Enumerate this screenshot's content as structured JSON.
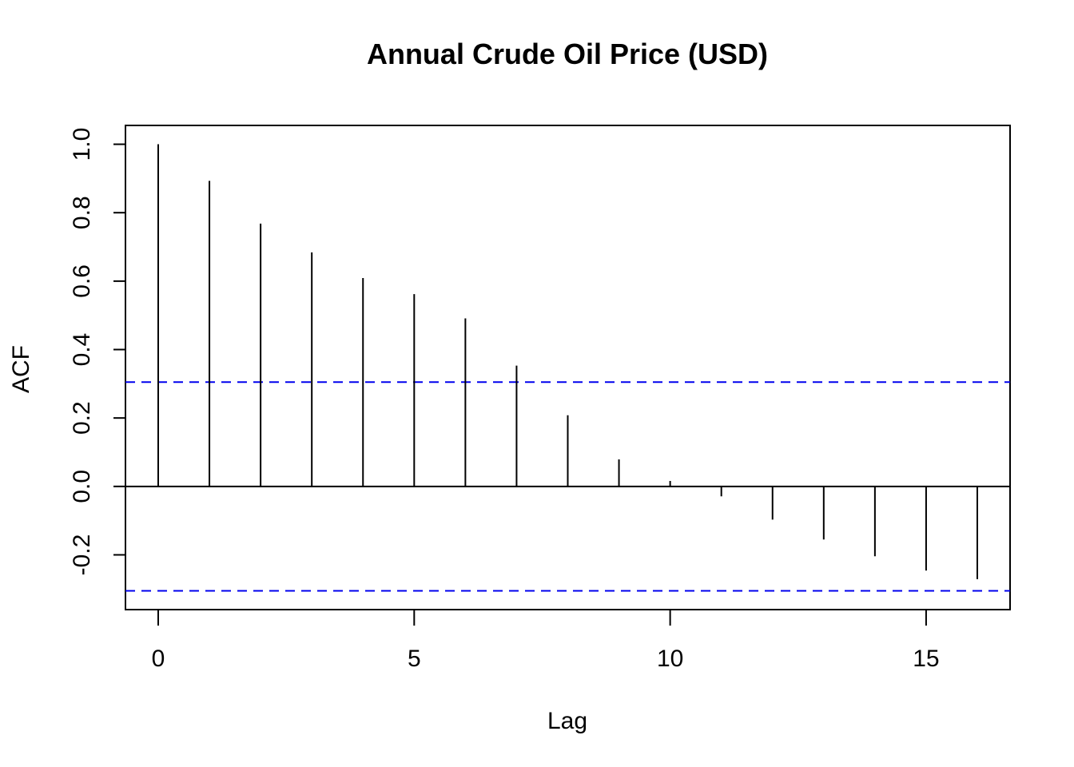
{
  "chart_data": {
    "type": "bar",
    "title": "Annual Crude Oil Price (USD)",
    "xlabel": "Lag",
    "ylabel": "ACF",
    "x": [
      0,
      1,
      2,
      3,
      4,
      5,
      6,
      7,
      8,
      9,
      10,
      11,
      12,
      13,
      14,
      15,
      16
    ],
    "values": [
      1.0,
      0.893,
      0.768,
      0.684,
      0.609,
      0.562,
      0.491,
      0.353,
      0.208,
      0.079,
      0.016,
      -0.029,
      -0.097,
      -0.155,
      -0.204,
      -0.246,
      -0.271
    ],
    "xlim": [
      -0.64,
      16.64
    ],
    "ylim": [
      -0.36,
      1.055
    ],
    "xticks": [
      0,
      5,
      10,
      15
    ],
    "xtick_labels": [
      "0",
      "5",
      "10",
      "15"
    ],
    "yticks": [
      -0.2,
      0.0,
      0.2,
      0.4,
      0.6,
      0.8,
      1.0
    ],
    "ytick_labels": [
      "-0.2",
      "0.0",
      "0.2",
      "0.4",
      "0.6",
      "0.8",
      "1.0"
    ],
    "confidence_bounds": [
      0.305,
      -0.305
    ],
    "zero_line": 0,
    "grid": false,
    "colors": {
      "bars": "#000000",
      "bounds": "#0000ee",
      "axes": "#000000"
    }
  }
}
